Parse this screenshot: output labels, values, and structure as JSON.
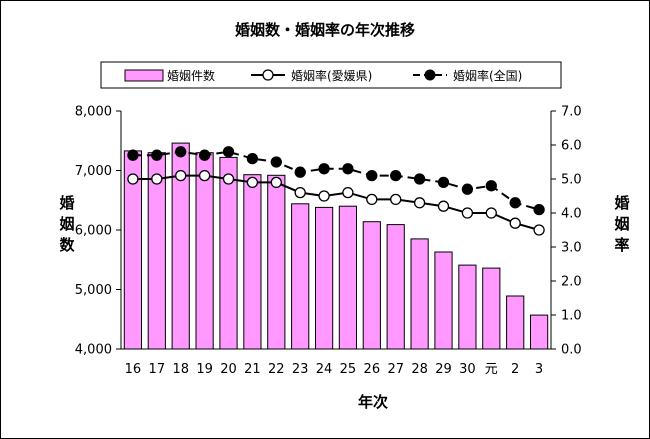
{
  "chart_data": {
    "type": "bar",
    "title": "婚姻数・婚姻率の年次推移",
    "xlabel": "年次",
    "ylabel_left": "婚姻数",
    "ylabel_right": "婚姻率",
    "categories": [
      "16",
      "17",
      "18",
      "19",
      "20",
      "21",
      "22",
      "23",
      "24",
      "25",
      "26",
      "27",
      "28",
      "29",
      "30",
      "元",
      "2",
      "3"
    ],
    "ylim_left": [
      4000,
      8000
    ],
    "yticks_left": [
      "4,000",
      "5,000",
      "6,000",
      "7,000",
      "8,000"
    ],
    "ylim_right": [
      0.0,
      7.0
    ],
    "yticks_right": [
      "0.0",
      "1.0",
      "2.0",
      "3.0",
      "4.0",
      "5.0",
      "6.0",
      "7.0"
    ],
    "grid": false,
    "legend_position": "top",
    "series": [
      {
        "name": "婚姻件数",
        "type": "bar",
        "axis": "left",
        "color": "#ff99ff",
        "values": [
          7330,
          7300,
          7460,
          7300,
          7220,
          6930,
          6920,
          6440,
          6380,
          6400,
          6140,
          6090,
          5850,
          5630,
          5410,
          5360,
          4890,
          4570
        ]
      },
      {
        "name": "婚姻率(愛媛県)",
        "type": "line",
        "axis": "right",
        "marker": "open-circle",
        "values": [
          5.0,
          5.0,
          5.1,
          5.1,
          5.0,
          4.9,
          4.9,
          4.6,
          4.5,
          4.6,
          4.4,
          4.4,
          4.3,
          4.2,
          4.0,
          4.0,
          3.7,
          3.5
        ]
      },
      {
        "name": "婚姻率(全国)",
        "type": "line",
        "axis": "right",
        "marker": "filled-circle",
        "dashed": true,
        "values": [
          5.7,
          5.7,
          5.8,
          5.7,
          5.8,
          5.6,
          5.5,
          5.2,
          5.3,
          5.3,
          5.1,
          5.1,
          5.0,
          4.9,
          4.7,
          4.8,
          4.3,
          4.1
        ]
      }
    ]
  }
}
